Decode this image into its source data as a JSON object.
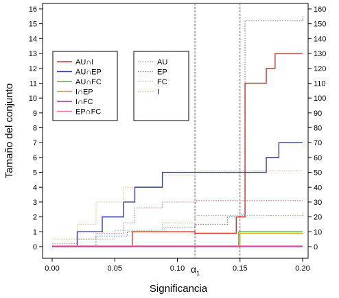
{
  "chart_data": {
    "type": "line",
    "xlabel": "Significancia",
    "ylabel": "Tamaño del conjunto",
    "xlim": [
      0,
      0.2
    ],
    "ylim_left": [
      0,
      16
    ],
    "ylim_right": [
      0,
      160
    ],
    "x_ticks": [
      "0.00",
      "0.05",
      "0.10",
      "0.15",
      "0.20"
    ],
    "y_ticks_left": [
      "0",
      "1",
      "2",
      "3",
      "4",
      "5",
      "6",
      "7",
      "8",
      "9",
      "10",
      "11",
      "12",
      "13",
      "14",
      "15",
      "16"
    ],
    "y_ticks_right": [
      "0",
      "10",
      "20",
      "30",
      "40",
      "50",
      "60",
      "70",
      "80",
      "90",
      "100",
      "110",
      "120",
      "130",
      "140",
      "150",
      "160"
    ],
    "alpha_label": "α",
    "alpha_subscript": "1",
    "vlines": [
      0.114,
      0.15
    ],
    "grid": false,
    "legend_left": [
      "AU∩I",
      "AU∩EP",
      "AU∩FC",
      "I∩EP",
      "I∩FC",
      "EP∩FC"
    ],
    "legend_right": [
      "AU",
      "EP",
      "FC",
      "I"
    ],
    "series": [
      {
        "name": "AU∩I",
        "axis": "left",
        "color": "#cc3333",
        "style": "solid",
        "x": [
          0,
          0.064,
          0.114,
          0.147,
          0.154,
          0.171,
          0.178,
          0.2
        ],
        "y": [
          0,
          1,
          0.9,
          2,
          11,
          12,
          13,
          13
        ]
      },
      {
        "name": "AU∩EP",
        "axis": "left",
        "color": "#33409a",
        "style": "solid",
        "x": [
          0,
          0.02,
          0.04,
          0.057,
          0.066,
          0.088,
          0.154,
          0.171,
          0.181,
          0.2
        ],
        "y": [
          0,
          1,
          2,
          3,
          4,
          5,
          5,
          6,
          7,
          7
        ]
      },
      {
        "name": "AU∩FC",
        "axis": "left",
        "color": "#55aa44",
        "style": "solid",
        "x": [
          0,
          0.149,
          0.2
        ],
        "y": [
          0,
          1,
          1
        ]
      },
      {
        "name": "I∩EP",
        "axis": "left",
        "color": "#f0a020",
        "style": "solid",
        "x": [
          0,
          0.15,
          0.2
        ],
        "y": [
          0,
          0.9,
          0.9
        ]
      },
      {
        "name": "I∩FC",
        "axis": "left",
        "color": "#993399",
        "style": "solid",
        "x": [
          0,
          0.2
        ],
        "y": [
          0,
          0
        ]
      },
      {
        "name": "EP∩FC",
        "axis": "left",
        "color": "#ee77aa",
        "style": "solid",
        "x": [
          0,
          0.2
        ],
        "y": [
          0.05,
          0.05
        ]
      },
      {
        "name": "AU",
        "axis": "right",
        "color": "#dd7799",
        "style": "dotted",
        "x": [
          0,
          0.02,
          0.035,
          0.057,
          0.066,
          0.088,
          0.115,
          0.14,
          0.2
        ],
        "y": [
          2,
          5,
          9,
          16,
          26,
          30,
          31,
          31,
          31
        ]
      },
      {
        "name": "EP",
        "axis": "right",
        "color": "#7080b8",
        "style": "dotted",
        "x": [
          0,
          0.035,
          0.06,
          0.09,
          0.114,
          0.14,
          0.151,
          0.154,
          0.2
        ],
        "y": [
          0,
          7,
          10,
          13,
          15,
          20,
          22,
          152,
          155
        ]
      },
      {
        "name": "FC",
        "axis": "right",
        "color": "#99cc88",
        "style": "dotted",
        "x": [
          0,
          0.02,
          0.05,
          0.088,
          0.114,
          0.2
        ],
        "y": [
          0,
          5,
          11,
          16,
          21,
          24
        ]
      },
      {
        "name": "I",
        "axis": "right",
        "color": "#f0c070",
        "style": "dotted",
        "x": [
          0,
          0.02,
          0.035,
          0.057,
          0.088,
          0.114,
          0.2
        ],
        "y": [
          5,
          15,
          30,
          40,
          48,
          51,
          51
        ]
      }
    ]
  }
}
